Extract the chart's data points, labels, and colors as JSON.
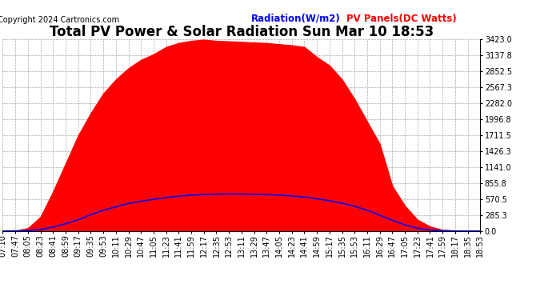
{
  "title": "Total PV Power & Solar Radiation Sun Mar 10 18:53",
  "copyright": "Copyright 2024 Cartronics.com",
  "legend_radiation": "Radiation(W/m2)",
  "legend_pv": "PV Panels(DC Watts)",
  "radiation_color": "blue",
  "pv_color": "red",
  "bg_color": "#ffffff",
  "plot_bg_color": "#ffffff",
  "grid_color": "#aaaaaa",
  "ymin": 0.0,
  "ymax": 3423.0,
  "yticks": [
    0.0,
    285.3,
    570.5,
    855.8,
    1141.0,
    1426.3,
    1711.5,
    1996.8,
    2282.0,
    2567.3,
    2852.5,
    3137.8,
    3423.0
  ],
  "x_labels": [
    "07:10",
    "07:47",
    "08:05",
    "08:23",
    "08:41",
    "08:59",
    "09:17",
    "09:35",
    "09:53",
    "10:11",
    "10:29",
    "10:47",
    "11:05",
    "11:23",
    "11:41",
    "11:59",
    "12:17",
    "12:35",
    "12:53",
    "13:11",
    "13:29",
    "13:47",
    "14:05",
    "14:23",
    "14:41",
    "14:59",
    "15:17",
    "15:35",
    "15:53",
    "16:11",
    "16:29",
    "16:47",
    "17:05",
    "17:23",
    "17:41",
    "17:59",
    "18:17",
    "18:35",
    "18:53"
  ],
  "pv_values": [
    0,
    5,
    50,
    250,
    700,
    1200,
    1700,
    2100,
    2450,
    2700,
    2900,
    3050,
    3150,
    3280,
    3350,
    3390,
    3410,
    3390,
    3380,
    3370,
    3360,
    3350,
    3330,
    3310,
    3280,
    3100,
    2950,
    2700,
    2350,
    1950,
    1550,
    800,
    450,
    200,
    80,
    20,
    5,
    2,
    0
  ],
  "radiation_values": [
    0,
    2,
    8,
    25,
    70,
    130,
    200,
    290,
    370,
    430,
    490,
    530,
    565,
    595,
    620,
    640,
    650,
    658,
    660,
    658,
    655,
    650,
    640,
    625,
    605,
    575,
    540,
    495,
    440,
    370,
    280,
    190,
    110,
    50,
    18,
    5,
    1,
    0,
    0
  ],
  "title_fontsize": 12,
  "tick_fontsize": 7,
  "copyright_fontsize": 7,
  "legend_fontsize": 8.5
}
